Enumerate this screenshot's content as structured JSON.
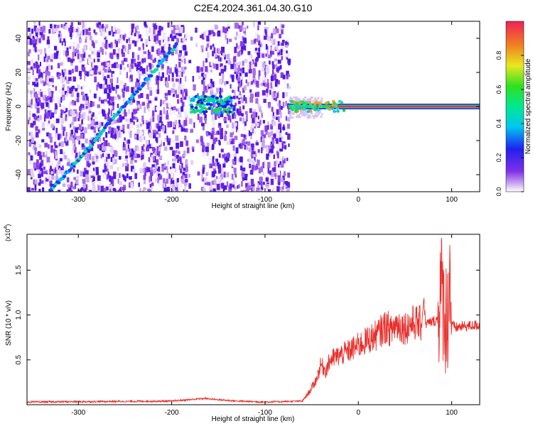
{
  "title": "C2E4.2024.361.04.30.G10",
  "chart_data": [
    {
      "type": "heatmap",
      "xlabel": "Height of straight line (km)",
      "ylabel": "Frequency (Hz)",
      "xlim": [
        -355,
        130
      ],
      "ylim": [
        -50,
        50
      ],
      "x_ticks": [
        -300,
        -200,
        -100,
        0,
        100
      ],
      "y_ticks": [
        -40,
        -20,
        0,
        20,
        40
      ],
      "colorbar": {
        "label": "Normalized spectral amplitude",
        "range": [
          0,
          1
        ],
        "ticks": [
          "0.0",
          "0.2",
          "0.4",
          "0.6",
          "0.8"
        ]
      },
      "features": {
        "noise_region_x": [
          -355,
          -75
        ],
        "blank_band_x": [
          -185,
          -170
        ],
        "diagonal_trace": {
          "x": [
            -330,
            -195
          ],
          "y": [
            -50,
            36
          ]
        },
        "patch": {
          "x": [
            -180,
            -135
          ],
          "y": [
            -4,
            6
          ]
        },
        "carrier": {
          "x": [
            -75,
            130
          ],
          "y": 0
        }
      },
      "grid": false
    },
    {
      "type": "line",
      "xlabel": "Height of straight line (km)",
      "ylabel": "SNR (10 * v/v)",
      "ylabel_exponent": "(x10",
      "ylabel_exponent_power": "4",
      "ylabel_exponent_close": ")",
      "xlim": [
        -355,
        130
      ],
      "ylim": [
        0,
        1.9
      ],
      "x_ticks": [
        -300,
        -200,
        -100,
        0,
        100
      ],
      "y_ticks": [
        "0.5",
        "1.0",
        "1.5"
      ],
      "color": "#e8302c",
      "series": [
        {
          "x": [
            -355,
            -200,
            -165,
            -155,
            -130,
            -100,
            -60,
            -52,
            -45,
            -40,
            -35,
            -30,
            -20,
            -10,
            0,
            10,
            20,
            30,
            35,
            40,
            50,
            60,
            68,
            70,
            72,
            78,
            85,
            88,
            92,
            95,
            98,
            100,
            105,
            110,
            120,
            130
          ],
          "y": [
            0.03,
            0.04,
            0.07,
            0.06,
            0.04,
            0.03,
            0.04,
            0.15,
            0.28,
            0.45,
            0.38,
            0.5,
            0.55,
            0.6,
            0.66,
            0.72,
            0.78,
            0.88,
            0.82,
            0.9,
            0.86,
            0.92,
            0.9,
            1.2,
            0.9,
            0.92,
            0.95,
            1.3,
            1.1,
            0.9,
            1.5,
            0.88,
            0.86,
            0.87,
            0.88,
            0.89
          ]
        }
      ],
      "grid": false
    }
  ]
}
